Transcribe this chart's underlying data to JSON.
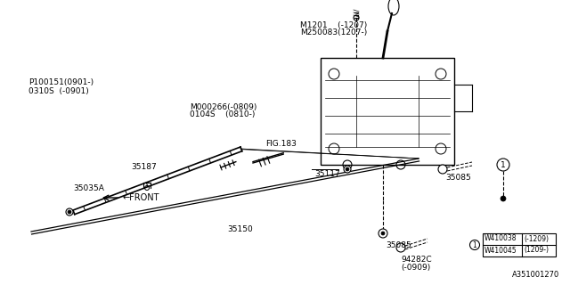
{
  "bg_color": "#ffffff",
  "line_color": "#000000",
  "fig_width": 6.4,
  "fig_height": 3.2,
  "dpi": 100,
  "labels": {
    "M1201": "M1201    (-1207)",
    "M250083": "M250083(1207-)",
    "M000266": "M000266(-0809)",
    "0104S": "0104S    (0810-)",
    "FIG183": "FIG.183",
    "P100151": "P100151(0901-)",
    "0310S": "0310S  (-0901)",
    "35187": "35187",
    "35035A": "35035A",
    "35117": "35117",
    "35150": "35150",
    "35085a": "35085",
    "35085b": "35085",
    "94282C": "94282C",
    "0909": "(-0909)",
    "FRONT": "←FRONT",
    "W410038": "W410038",
    "neg1209": "(-1209)",
    "W410045": "W410045",
    "pos1209": "(1209-)",
    "circle1": "1",
    "diagram_id": "A351001270"
  }
}
